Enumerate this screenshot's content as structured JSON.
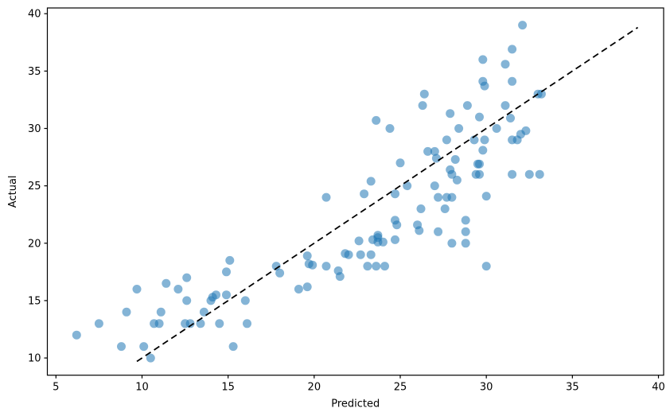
{
  "chart_data": {
    "type": "scatter",
    "title": "",
    "xlabel": "Predicted",
    "ylabel": "Actual",
    "xlim": [
      4.5,
      40.3
    ],
    "ylim": [
      8.5,
      40.5
    ],
    "x_ticks": [
      5,
      10,
      15,
      20,
      25,
      30,
      35,
      40
    ],
    "y_ticks": [
      10,
      15,
      20,
      25,
      30,
      35,
      40
    ],
    "grid": false,
    "legend": "none",
    "marker": {
      "shape": "circle",
      "color": "#1f77b4",
      "alpha": 0.55,
      "radius_px": 5.5
    },
    "identity_line": {
      "style": "dashed",
      "color": "#000000",
      "from": [
        9.7,
        9.7
      ],
      "to": [
        38.8,
        38.8
      ]
    },
    "points": [
      [
        6.2,
        12
      ],
      [
        7.5,
        13
      ],
      [
        8.8,
        11
      ],
      [
        9.1,
        14
      ],
      [
        9.7,
        16
      ],
      [
        10.1,
        11
      ],
      [
        10.5,
        10
      ],
      [
        10.7,
        13
      ],
      [
        11,
        13
      ],
      [
        11.1,
        14
      ],
      [
        11.4,
        16.5
      ],
      [
        12.1,
        16
      ],
      [
        12.5,
        13
      ],
      [
        12.8,
        13
      ],
      [
        12.6,
        15
      ],
      [
        12.6,
        17
      ],
      [
        13.4,
        13
      ],
      [
        13.6,
        14
      ],
      [
        14,
        15
      ],
      [
        14.1,
        15.3
      ],
      [
        14.3,
        15.5
      ],
      [
        14.9,
        15.5
      ],
      [
        14.5,
        13
      ],
      [
        14.9,
        17.5
      ],
      [
        15.1,
        18.5
      ],
      [
        15.3,
        11
      ],
      [
        16,
        15
      ],
      [
        16.1,
        13
      ],
      [
        17.8,
        18
      ],
      [
        18,
        17.4
      ],
      [
        19.6,
        18.9
      ],
      [
        19.7,
        18.2
      ],
      [
        19.9,
        18.1
      ],
      [
        19.1,
        16
      ],
      [
        19.6,
        16.2
      ],
      [
        20.7,
        18
      ],
      [
        20.7,
        24
      ],
      [
        21.4,
        17.6
      ],
      [
        21.5,
        17.1
      ],
      [
        21.8,
        19.1
      ],
      [
        22,
        19
      ],
      [
        22.7,
        19
      ],
      [
        23.3,
        19
      ],
      [
        22.6,
        20.2
      ],
      [
        23.4,
        20.3
      ],
      [
        23.7,
        20.5
      ],
      [
        23.7,
        20.1
      ],
      [
        24,
        20.1
      ],
      [
        24.7,
        20.3
      ],
      [
        23.7,
        20.7
      ],
      [
        23.1,
        18
      ],
      [
        23.6,
        18
      ],
      [
        24.1,
        18
      ],
      [
        22.9,
        24.3
      ],
      [
        23.3,
        25.4
      ],
      [
        24.7,
        24.3
      ],
      [
        25,
        27
      ],
      [
        25.4,
        25
      ],
      [
        24.7,
        22
      ],
      [
        24.8,
        21.6
      ],
      [
        26,
        21.6
      ],
      [
        26.1,
        21.1
      ],
      [
        27.2,
        21
      ],
      [
        26.2,
        23
      ],
      [
        27.6,
        23
      ],
      [
        27,
        25
      ],
      [
        27.2,
        24
      ],
      [
        27.7,
        24
      ],
      [
        28,
        24
      ],
      [
        28.3,
        25.5
      ],
      [
        28,
        26
      ],
      [
        27.9,
        26.4
      ],
      [
        29.4,
        26
      ],
      [
        29.6,
        26
      ],
      [
        29.5,
        26.9
      ],
      [
        29.6,
        26.9
      ],
      [
        28.2,
        27.3
      ],
      [
        27.1,
        27.4
      ],
      [
        26.6,
        28
      ],
      [
        27,
        28
      ],
      [
        27.7,
        29
      ],
      [
        29.3,
        29
      ],
      [
        29.9,
        29
      ],
      [
        29.8,
        28.1
      ],
      [
        28.8,
        22
      ],
      [
        28.8,
        21
      ],
      [
        28.8,
        20
      ],
      [
        28,
        20
      ],
      [
        30,
        18
      ],
      [
        30,
        24.1
      ],
      [
        31.5,
        26
      ],
      [
        32.5,
        26
      ],
      [
        33.1,
        26
      ],
      [
        23.6,
        30.7
      ],
      [
        24.4,
        30
      ],
      [
        26.4,
        33
      ],
      [
        26.3,
        32
      ],
      [
        28.9,
        32
      ],
      [
        27.9,
        31.3
      ],
      [
        29.6,
        31
      ],
      [
        28.4,
        30
      ],
      [
        30.6,
        30
      ],
      [
        29.8,
        34.1
      ],
      [
        29.9,
        33.7
      ],
      [
        29.8,
        36
      ],
      [
        31.1,
        35.6
      ],
      [
        31.5,
        36.9
      ],
      [
        32.1,
        39
      ],
      [
        31.5,
        34.1
      ],
      [
        31.4,
        30.9
      ],
      [
        31.1,
        32
      ],
      [
        32,
        29.5
      ],
      [
        32.3,
        29.8
      ],
      [
        31.5,
        29
      ],
      [
        31.8,
        29
      ],
      [
        33,
        33
      ],
      [
        33.2,
        33
      ]
    ]
  }
}
